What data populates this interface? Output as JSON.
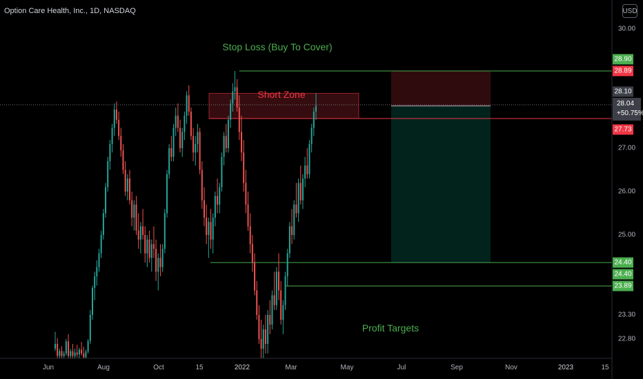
{
  "header": {
    "title": "Option Care Health, Inc., 1D, NASDAQ",
    "currency": "USD"
  },
  "annotations": {
    "stop_loss": "Stop Loss (Buy To Cover)",
    "short_zone": "Short Zone",
    "profit_targets": "Profit Targets"
  },
  "colors": {
    "up": "#26a69a",
    "down": "#ef5350",
    "green_line": "#4caf50",
    "red_line": "#f23645",
    "annotation_green": "#4caf50",
    "annotation_red": "#f23645"
  },
  "price_labels": [
    {
      "text": "28.90",
      "value": 28.9,
      "color": "#4caf50"
    },
    {
      "text": "28.89",
      "value": 28.89,
      "color": "#f23645"
    },
    {
      "text": "28.10",
      "value": 28.1,
      "color": "#3c3f47"
    },
    {
      "text": "27.73",
      "value": 27.73,
      "color": "#f23645"
    },
    {
      "text": "24.40",
      "value": 24.4,
      "color": "#4caf50"
    },
    {
      "text": "24.40",
      "value": 24.4,
      "color": "#4caf50"
    },
    {
      "text": "23.89",
      "value": 23.89,
      "color": "#4caf50"
    }
  ],
  "current_price": {
    "price": "28.04",
    "change": "+50.75%"
  },
  "chart_data": {
    "type": "candlestick",
    "title": "Option Care Health, Inc., 1D, NASDAQ",
    "y_ticks": [
      "30.00",
      "27.00",
      "26.00",
      "25.00",
      "23.30",
      "22.80"
    ],
    "x_ticks": [
      "Jun",
      "Aug",
      "Oct",
      "15",
      "2022",
      "Mar",
      "May",
      "Jul",
      "Sep",
      "Nov",
      "2023",
      "15"
    ],
    "ylim": [
      22.3,
      30.5
    ],
    "levels": [
      {
        "name": "stop-loss-line",
        "value": 28.9
      },
      {
        "name": "entry-line",
        "value": 27.73
      },
      {
        "name": "target-line-1",
        "value": 24.4
      },
      {
        "name": "target-line-2",
        "value": 23.89
      }
    ],
    "short_zone": {
      "low": 27.73,
      "high": 28.35,
      "from": "Nov 2021",
      "to": "Apr 2022"
    },
    "position": {
      "entry": 27.73,
      "stop": 28.89,
      "target": 24.4,
      "from": "Jun 2022",
      "to": "Oct 2022"
    },
    "candles": [
      [
        22.6,
        22.95,
        22.55,
        22.7
      ],
      [
        22.7,
        22.82,
        22.4,
        22.45
      ],
      [
        22.45,
        22.6,
        22.38,
        22.55
      ],
      [
        22.55,
        22.65,
        22.4,
        22.45
      ],
      [
        22.45,
        22.55,
        22.3,
        22.5
      ],
      [
        22.5,
        22.8,
        22.45,
        22.75
      ],
      [
        22.75,
        22.9,
        22.4,
        22.45
      ],
      [
        22.45,
        22.6,
        22.35,
        22.55
      ],
      [
        22.55,
        22.7,
        22.4,
        22.45
      ],
      [
        22.45,
        22.6,
        22.35,
        22.52
      ],
      [
        22.52,
        22.68,
        22.42,
        22.48
      ],
      [
        22.48,
        22.62,
        22.36,
        22.58
      ],
      [
        22.58,
        22.74,
        22.46,
        22.5
      ],
      [
        22.5,
        22.64,
        22.36,
        22.42
      ],
      [
        22.42,
        22.58,
        22.34,
        22.54
      ],
      [
        22.54,
        22.8,
        22.5,
        22.76
      ],
      [
        22.76,
        23.4,
        22.7,
        23.3
      ],
      [
        23.3,
        23.9,
        23.2,
        23.85
      ],
      [
        23.85,
        24.2,
        23.6,
        24.1
      ],
      [
        24.1,
        24.45,
        23.9,
        24.3
      ],
      [
        24.3,
        24.7,
        24.2,
        24.6
      ],
      [
        24.6,
        25.1,
        24.5,
        25.0
      ],
      [
        25.0,
        25.6,
        24.9,
        25.5
      ],
      [
        25.5,
        26.2,
        25.4,
        26.1
      ],
      [
        26.1,
        26.8,
        26.0,
        26.7
      ],
      [
        26.7,
        27.2,
        26.5,
        27.1
      ],
      [
        27.1,
        27.6,
        26.9,
        27.5
      ],
      [
        27.5,
        28.1,
        27.3,
        27.95
      ],
      [
        27.95,
        28.15,
        27.6,
        27.7
      ],
      [
        27.7,
        27.9,
        27.2,
        27.3
      ],
      [
        27.3,
        27.5,
        26.8,
        26.95
      ],
      [
        26.95,
        27.1,
        26.4,
        26.5
      ],
      [
        26.5,
        26.7,
        25.9,
        26.0
      ],
      [
        26.0,
        26.4,
        25.8,
        26.3
      ],
      [
        26.3,
        26.5,
        25.7,
        25.8
      ],
      [
        25.8,
        26.0,
        25.2,
        25.4
      ],
      [
        25.4,
        25.8,
        25.1,
        25.7
      ],
      [
        25.7,
        25.9,
        25.0,
        25.1
      ],
      [
        25.1,
        25.5,
        24.7,
        24.9
      ],
      [
        24.9,
        25.3,
        24.6,
        25.2
      ],
      [
        25.2,
        25.6,
        24.9,
        25.0
      ],
      [
        25.0,
        25.2,
        24.4,
        24.6
      ],
      [
        24.6,
        25.0,
        24.3,
        24.9
      ],
      [
        24.9,
        25.1,
        24.4,
        24.5
      ],
      [
        24.5,
        24.9,
        24.2,
        24.8
      ],
      [
        24.8,
        25.2,
        24.5,
        24.7
      ],
      [
        24.7,
        24.9,
        24.0,
        24.2
      ],
      [
        24.2,
        24.6,
        23.8,
        24.5
      ],
      [
        24.5,
        24.8,
        24.1,
        24.3
      ],
      [
        24.3,
        24.8,
        24.2,
        24.7
      ],
      [
        24.7,
        25.6,
        24.6,
        25.5
      ],
      [
        25.5,
        26.5,
        25.4,
        26.4
      ],
      [
        26.4,
        27.1,
        26.3,
        27.0
      ],
      [
        27.0,
        27.3,
        26.7,
        26.8
      ],
      [
        26.8,
        27.6,
        26.7,
        27.5
      ],
      [
        27.5,
        28.0,
        27.3,
        27.8
      ],
      [
        27.8,
        28.1,
        27.4,
        27.5
      ],
      [
        27.5,
        27.7,
        26.9,
        27.0
      ],
      [
        27.0,
        27.5,
        26.8,
        27.4
      ],
      [
        27.4,
        27.9,
        27.2,
        27.8
      ],
      [
        27.8,
        28.4,
        27.6,
        28.3
      ],
      [
        28.3,
        28.55,
        27.8,
        27.9
      ],
      [
        27.9,
        28.0,
        27.2,
        27.3
      ],
      [
        27.3,
        27.5,
        26.7,
        26.9
      ],
      [
        26.9,
        27.3,
        26.6,
        27.1
      ],
      [
        27.1,
        27.6,
        26.9,
        27.4
      ],
      [
        27.4,
        27.5,
        26.4,
        26.5
      ],
      [
        26.5,
        26.7,
        25.6,
        25.8
      ],
      [
        25.8,
        26.1,
        25.2,
        25.4
      ],
      [
        25.4,
        25.7,
        24.8,
        25.0
      ],
      [
        25.0,
        25.4,
        24.5,
        25.3
      ],
      [
        25.3,
        25.6,
        24.7,
        24.9
      ],
      [
        24.9,
        25.5,
        24.6,
        25.4
      ],
      [
        25.4,
        26.0,
        25.2,
        25.9
      ],
      [
        25.9,
        26.3,
        25.5,
        25.7
      ],
      [
        25.7,
        26.2,
        25.5,
        26.1
      ],
      [
        26.1,
        26.9,
        26.0,
        26.8
      ],
      [
        26.8,
        27.4,
        26.6,
        27.3
      ],
      [
        27.3,
        27.6,
        26.9,
        27.0
      ],
      [
        27.0,
        27.8,
        26.9,
        27.7
      ],
      [
        27.7,
        28.2,
        27.5,
        28.1
      ],
      [
        28.1,
        28.6,
        27.9,
        28.4
      ],
      [
        28.4,
        28.9,
        28.2,
        28.5
      ],
      [
        28.5,
        28.7,
        27.9,
        28.0
      ],
      [
        28.0,
        28.3,
        27.2,
        27.4
      ],
      [
        27.4,
        27.8,
        26.7,
        26.9
      ],
      [
        26.9,
        27.2,
        26.0,
        26.2
      ],
      [
        26.2,
        26.5,
        25.5,
        25.7
      ],
      [
        25.7,
        26.0,
        25.1,
        25.2
      ],
      [
        25.2,
        25.5,
        24.6,
        24.8
      ],
      [
        24.8,
        25.0,
        24.2,
        24.4
      ],
      [
        24.4,
        24.6,
        23.7,
        23.8
      ],
      [
        23.8,
        24.0,
        23.2,
        23.3
      ],
      [
        23.3,
        23.5,
        22.7,
        22.8
      ],
      [
        22.8,
        23.2,
        22.4,
        22.6
      ],
      [
        22.6,
        23.1,
        22.3,
        23.0
      ],
      [
        23.0,
        23.3,
        22.5,
        22.7
      ],
      [
        22.7,
        23.4,
        22.5,
        23.3
      ],
      [
        23.3,
        23.6,
        22.9,
        23.1
      ],
      [
        23.1,
        23.8,
        23.0,
        23.7
      ],
      [
        23.7,
        24.2,
        23.4,
        23.5
      ],
      [
        23.5,
        24.3,
        23.4,
        24.2
      ],
      [
        24.2,
        24.6,
        23.6,
        23.8
      ],
      [
        23.8,
        24.0,
        23.1,
        23.2
      ],
      [
        23.2,
        23.6,
        22.9,
        23.5
      ],
      [
        23.5,
        24.2,
        23.4,
        24.1
      ],
      [
        24.1,
        24.7,
        23.9,
        24.6
      ],
      [
        24.6,
        25.3,
        24.5,
        25.2
      ],
      [
        25.2,
        25.6,
        24.8,
        25.0
      ],
      [
        25.0,
        25.8,
        24.9,
        25.7
      ],
      [
        25.7,
        26.2,
        25.4,
        25.5
      ],
      [
        25.5,
        26.3,
        25.3,
        26.2
      ],
      [
        26.2,
        26.6,
        25.7,
        25.8
      ],
      [
        25.8,
        26.4,
        25.6,
        26.3
      ],
      [
        26.3,
        26.8,
        26.1,
        26.6
      ],
      [
        26.6,
        27.0,
        26.3,
        26.4
      ],
      [
        26.4,
        27.2,
        26.3,
        27.1
      ],
      [
        27.1,
        27.6,
        26.9,
        27.5
      ],
      [
        27.5,
        28.0,
        27.3,
        27.9
      ],
      [
        27.9,
        28.35,
        27.7,
        28.04
      ]
    ]
  }
}
